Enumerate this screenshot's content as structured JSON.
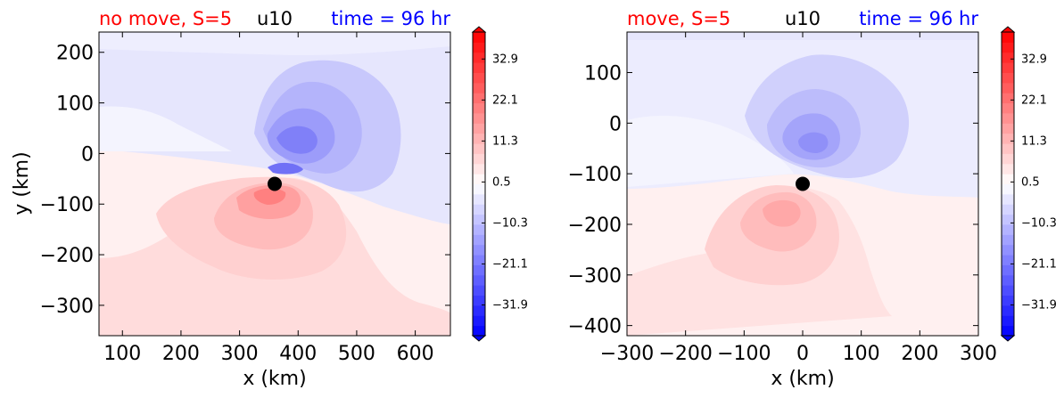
{
  "chart_data": [
    {
      "type": "heatmap",
      "title_left": "no move, S=5",
      "title_center": "u10",
      "title_right": "time = 96 hr",
      "title_left_color": "#ff0000",
      "title_right_color": "#0000ff",
      "xlabel": "x (km)",
      "ylabel": "y (km)",
      "xlim": [
        60,
        660
      ],
      "ylim": [
        -360,
        240
      ],
      "xticks": [
        100,
        200,
        300,
        400,
        500,
        600
      ],
      "yticks": [
        200,
        100,
        0,
        -100,
        -200,
        -300
      ],
      "marker": {
        "x": 360,
        "y": -60,
        "color": "#000000"
      },
      "colorbar": {
        "tick_values": [
          32.9,
          22.1,
          11.3,
          0.5,
          -10.3,
          -21.1,
          -31.9
        ],
        "tick_labels": [
          "32.9",
          "22.1",
          "11.3",
          "0.5",
          "−10.3",
          "−21.1",
          "−31.9"
        ],
        "range": [
          -40,
          40
        ],
        "extend": "both"
      }
    },
    {
      "type": "heatmap",
      "title_left": "move, S=5",
      "title_center": "u10",
      "title_right": "time = 96 hr",
      "title_left_color": "#ff0000",
      "title_right_color": "#0000ff",
      "xlabel": "x (km)",
      "ylabel": "",
      "xlim": [
        -300,
        300
      ],
      "ylim": [
        -420,
        180
      ],
      "xticks": [
        -300,
        -200,
        -100,
        0,
        100,
        200,
        300
      ],
      "xtick_labels": [
        "−300",
        "−200",
        "−100",
        "0",
        "100",
        "200",
        "300"
      ],
      "yticks": [
        100,
        0,
        -100,
        -200,
        -300,
        -400
      ],
      "ytick_labels": [
        "100",
        "0",
        "−100",
        "−200",
        "−300",
        "−400"
      ],
      "marker": {
        "x": 0,
        "y": -120,
        "color": "#000000"
      },
      "colorbar": {
        "tick_values": [
          32.9,
          22.1,
          11.3,
          0.5,
          -10.3,
          -21.1,
          -31.9
        ],
        "tick_labels": [
          "32.9",
          "22.1",
          "11.3",
          "0.5",
          "−10.3",
          "−21.1",
          "−31.9"
        ],
        "range": [
          -40,
          40
        ],
        "extend": "both"
      }
    }
  ]
}
